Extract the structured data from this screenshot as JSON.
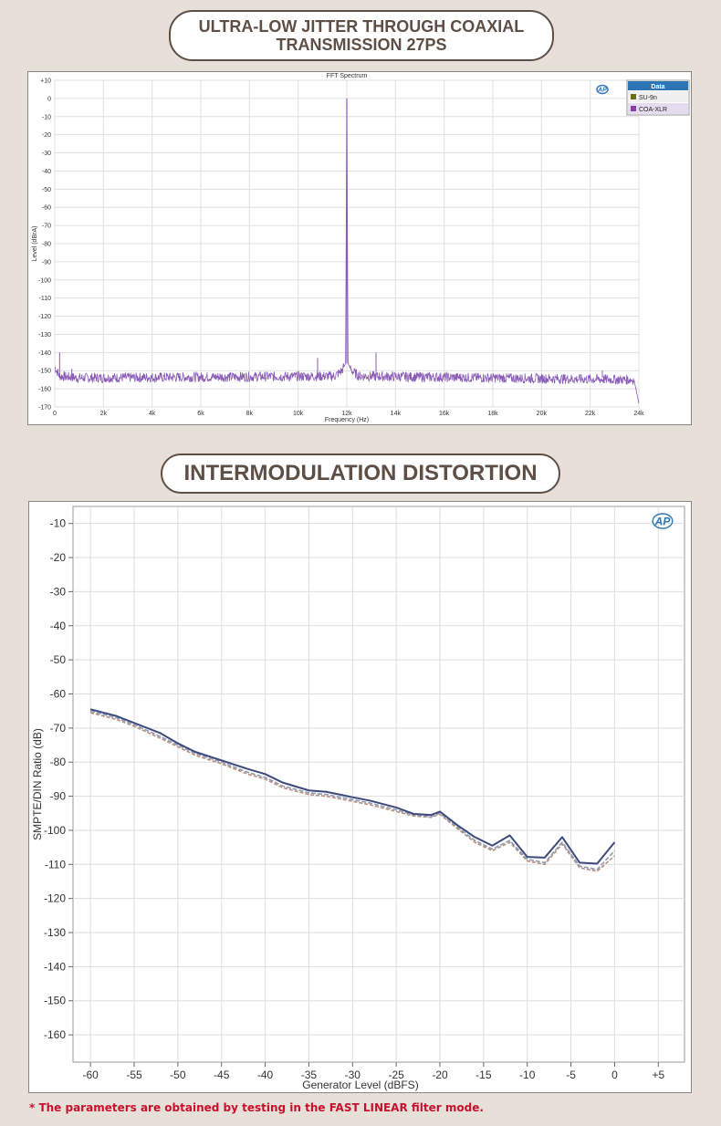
{
  "sections": [
    {
      "title": "ULTRA-LOW JITTER THROUGH COAXIAL TRANSMISSION 27PS"
    },
    {
      "title": "INTERMODULATION DISTORTION"
    }
  ],
  "logo_text": "AP",
  "footnote": "* The parameters are obtained by testing in the FAST LINEAR filter mode.",
  "colors": {
    "background": "#e7e0d8",
    "pill_border": "#5e4f46",
    "fft_trace": "#8a5cb8",
    "imd_series1": "#3e4a7a",
    "imd_series2": "#8d9ab8",
    "imd_series3": "#b8907c",
    "legend_header": "#2e75b6",
    "su9n_swatch": "#6b6b10",
    "coaxlr_swatch": "#8a3ea8",
    "footnote": "#c8102e"
  },
  "chart_data": [
    {
      "type": "line",
      "title": "FFT Spectrum",
      "xlabel": "Frequency (Hz)",
      "ylabel": "Level (dBrA)",
      "xlim": [
        0,
        24000
      ],
      "ylim": [
        -170,
        10
      ],
      "x_ticks": [
        0,
        2000,
        4000,
        6000,
        8000,
        10000,
        12000,
        14000,
        16000,
        18000,
        20000,
        22000,
        24000
      ],
      "x_tick_labels": [
        "0",
        "2k",
        "4k",
        "6k",
        "8k",
        "10k",
        "12k",
        "14k",
        "16k",
        "18k",
        "20k",
        "22k",
        "24k"
      ],
      "y_ticks": [
        10,
        0,
        -10,
        -20,
        -30,
        -40,
        -50,
        -60,
        -70,
        -80,
        -90,
        -100,
        -110,
        -120,
        -130,
        -140,
        -150,
        -160,
        -170
      ],
      "y_tick_labels": [
        "+10",
        "0",
        "-10",
        "-20",
        "-30",
        "-40",
        "-50",
        "-60",
        "-70",
        "-80",
        "-90",
        "-100",
        "-110",
        "-120",
        "-130",
        "-140",
        "-150",
        "-160",
        "-170"
      ],
      "grid": true,
      "legend": {
        "title": "Data",
        "placement": "right",
        "entries": [
          "SU-9n",
          "COA-XLR"
        ]
      },
      "series": [
        {
          "name": "COA-XLR",
          "noise_floor_db": -154,
          "x": [
            0,
            200,
            1000,
            11500,
            11800,
            11950,
            12000,
            12050,
            12200,
            12500,
            23800,
            24000
          ],
          "y": [
            -148,
            -153,
            -154,
            -153,
            -150,
            -146,
            0,
            -146,
            -150,
            -153,
            -155,
            -168
          ],
          "spurs": [
            {
              "x": 200,
              "y": -140
            },
            {
              "x": 700,
              "y": -149
            },
            {
              "x": 10800,
              "y": -143
            },
            {
              "x": 13200,
              "y": -140
            },
            {
              "x": 22500,
              "y": -150
            }
          ]
        }
      ]
    },
    {
      "type": "line",
      "title": "",
      "xlabel": "Generator Level (dBFS)",
      "ylabel": "SMPTE/DIN Ratio (dB)",
      "xlim": [
        -62,
        8
      ],
      "ylim": [
        -168,
        -5
      ],
      "x_ticks": [
        -60,
        -55,
        -50,
        -45,
        -40,
        -35,
        -30,
        -25,
        -20,
        -15,
        -10,
        -5,
        0,
        5
      ],
      "x_tick_labels": [
        "-60",
        "-55",
        "-50",
        "-45",
        "-40",
        "-35",
        "-30",
        "-25",
        "-20",
        "-15",
        "-10",
        "-5",
        "0",
        "+5"
      ],
      "y_ticks": [
        -10,
        -20,
        -30,
        -40,
        -50,
        -60,
        -70,
        -80,
        -90,
        -100,
        -110,
        -120,
        -130,
        -140,
        -150,
        -160
      ],
      "y_tick_labels": [
        "-10",
        "-20",
        "-30",
        "-40",
        "-50",
        "-60",
        "-70",
        "-80",
        "-90",
        "-100",
        "-110",
        "-120",
        "-130",
        "-140",
        "-150",
        "-160"
      ],
      "grid": true,
      "x": [
        -60,
        -57,
        -55,
        -52,
        -50,
        -48,
        -45,
        -42,
        -40,
        -38,
        -35,
        -33,
        -30,
        -28,
        -25,
        -23,
        -21,
        -20,
        -18,
        -16,
        -14,
        -12,
        -10,
        -8,
        -6,
        -4,
        -2,
        0
      ],
      "series": [
        {
          "values": [
            -64.5,
            -66.5,
            -68.5,
            -71.5,
            -74.5,
            -77,
            -79.5,
            -82,
            -83.5,
            -86,
            -88.3,
            -88.7,
            -90.3,
            -91.3,
            -93.3,
            -95.2,
            -95.5,
            -94.5,
            -98.5,
            -102,
            -104.5,
            -101.5,
            -107.8,
            -108,
            -102,
            -109.5,
            -109.8,
            -103.5
          ]
        },
        {
          "values": [
            -65,
            -67,
            -69,
            -72.5,
            -75,
            -77.5,
            -80,
            -83,
            -84.5,
            -87,
            -89,
            -89.5,
            -91,
            -92,
            -94,
            -95.5,
            -96,
            -95,
            -99,
            -103,
            -105.5,
            -103,
            -108.5,
            -109.5,
            -103.5,
            -110.5,
            -111.5,
            -106
          ]
        },
        {
          "values": [
            -65.5,
            -67.5,
            -69.5,
            -73,
            -75.5,
            -78,
            -80.5,
            -83.5,
            -85,
            -87.5,
            -89.5,
            -90,
            -91.5,
            -92.5,
            -94.5,
            -95.8,
            -96.2,
            -95.3,
            -99.5,
            -103.5,
            -106,
            -103.5,
            -109,
            -110,
            -104,
            -111,
            -112,
            -107.5
          ]
        }
      ]
    }
  ]
}
